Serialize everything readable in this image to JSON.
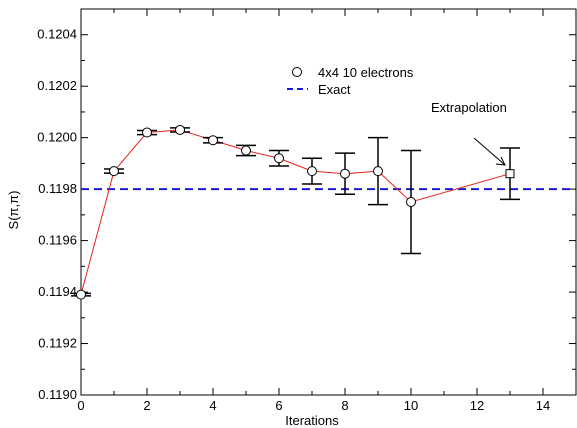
{
  "chart_data": {
    "type": "scatter",
    "xlabel": "Iterations",
    "ylabel": "S(π,π)",
    "xlim": [
      0,
      15
    ],
    "ylim": [
      0.119,
      0.1205
    ],
    "xticks": [
      0,
      2,
      4,
      6,
      8,
      10,
      12,
      14
    ],
    "yticks": [
      0.119,
      0.1192,
      0.1194,
      0.1196,
      0.1198,
      0.12,
      0.1202,
      0.1204
    ],
    "xtick_labels": [
      "0",
      "2",
      "4",
      "6",
      "8",
      "10",
      "12",
      "14"
    ],
    "ytick_labels": [
      "0.1190",
      "0.1192",
      "0.1194",
      "0.1196",
      "0.1198",
      "0.1200",
      "0.1202",
      "0.1204"
    ],
    "grid": false,
    "legend_position": "top-center",
    "series": [
      {
        "name": "4x4 10 electrons",
        "marker": "circle",
        "color": "#000000",
        "line_color": "#e8211a",
        "points": [
          {
            "x": 0,
            "y": 0.11939,
            "err": 5e-06
          },
          {
            "x": 1,
            "y": 0.11987,
            "err": 8e-06
          },
          {
            "x": 2,
            "y": 0.12002,
            "err": 8e-06
          },
          {
            "x": 3,
            "y": 0.12003,
            "err": 8e-06
          },
          {
            "x": 4,
            "y": 0.11999,
            "err": 1e-05
          },
          {
            "x": 5,
            "y": 0.11995,
            "err": 2e-05
          },
          {
            "x": 6,
            "y": 0.11992,
            "err": 3e-05
          },
          {
            "x": 7,
            "y": 0.11987,
            "err": 5e-05
          },
          {
            "x": 8,
            "y": 0.11986,
            "err": 8e-05
          },
          {
            "x": 9,
            "y": 0.11987,
            "err": 0.00013
          },
          {
            "x": 10,
            "y": 0.11975,
            "err": 0.0002
          }
        ]
      },
      {
        "name": "Extrapolation",
        "marker": "square",
        "color": "#000000",
        "points": [
          {
            "x": 13,
            "y": 0.11986,
            "err": 0.0001
          }
        ]
      },
      {
        "name": "Exact",
        "style": "dashed",
        "color": "#1a1ad6",
        "y": 0.1198
      }
    ],
    "annotations": [
      {
        "text": "Extrapolation",
        "x": 12.5,
        "y": 0.11985
      }
    ]
  }
}
